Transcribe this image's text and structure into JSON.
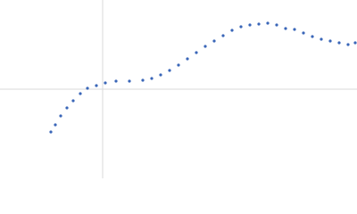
{
  "chart_data": {
    "type": "scatter",
    "color": "#3a66b8",
    "xlim": [
      -115,
      285
    ],
    "ylim": [
      -100,
      100
    ],
    "x": [
      -58,
      -53,
      -47,
      -40,
      -33,
      -25,
      -17,
      -7,
      3,
      15,
      30,
      45,
      55,
      65,
      75,
      85,
      95,
      105,
      115,
      125,
      135,
      145,
      155,
      165,
      175,
      185,
      195,
      205,
      215,
      225,
      235,
      245,
      255,
      265,
      275,
      283
    ],
    "values": [
      -48,
      -40,
      -30,
      -21,
      -13,
      -5,
      1,
      4,
      7,
      9,
      9,
      10,
      12,
      16,
      21,
      27,
      34,
      41,
      48,
      54,
      60,
      66,
      70,
      72,
      73,
      74,
      72,
      68,
      67,
      63,
      59,
      56,
      54,
      52,
      50,
      52
    ]
  }
}
